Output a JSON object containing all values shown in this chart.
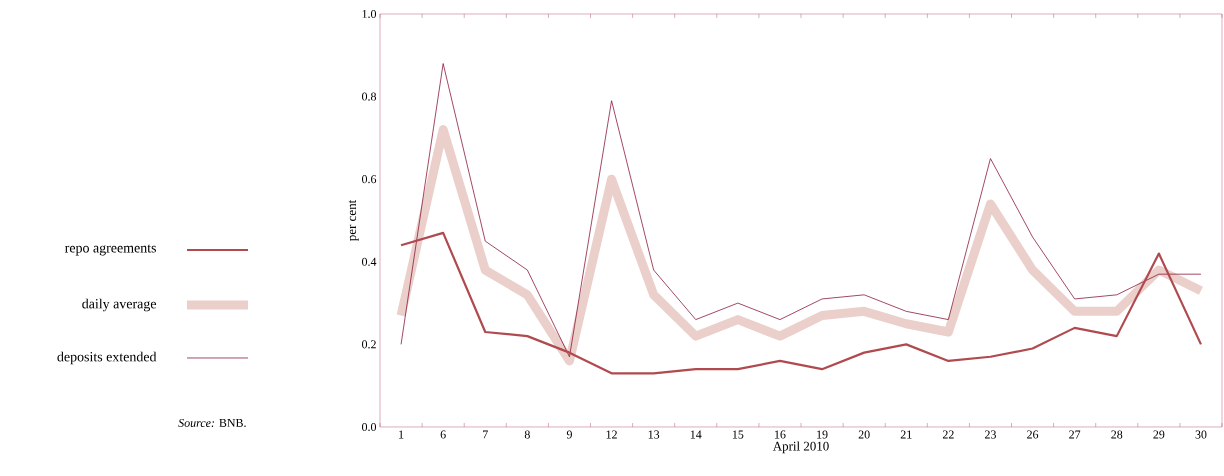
{
  "chart_data": {
    "type": "line",
    "xlabel": "April 2010",
    "ylabel": "per cent",
    "categories": [
      "1",
      "6",
      "7",
      "8",
      "9",
      "12",
      "13",
      "14",
      "15",
      "16",
      "19",
      "20",
      "21",
      "22",
      "23",
      "26",
      "27",
      "28",
      "29",
      "30"
    ],
    "series": [
      {
        "name": "repo agreements",
        "color": "#b04a4f",
        "values": [
          0.44,
          0.47,
          0.23,
          0.22,
          0.18,
          0.13,
          0.13,
          0.14,
          0.14,
          0.16,
          0.14,
          0.18,
          0.2,
          0.16,
          0.17,
          0.19,
          0.24,
          0.22,
          0.42,
          0.2
        ]
      },
      {
        "name": "daily average",
        "color": "#ebcfca",
        "values": [
          0.27,
          0.72,
          0.38,
          0.32,
          0.16,
          0.6,
          0.32,
          0.22,
          0.26,
          0.22,
          0.27,
          0.28,
          0.25,
          0.23,
          0.54,
          0.38,
          0.28,
          0.28,
          0.38,
          0.33
        ]
      },
      {
        "name": "deposits extended",
        "color": "#8b1a3a",
        "values": [
          0.2,
          0.88,
          0.45,
          0.38,
          0.17,
          0.79,
          0.38,
          0.26,
          0.3,
          0.26,
          0.31,
          0.32,
          0.28,
          0.26,
          0.65,
          0.46,
          0.31,
          0.32,
          0.37,
          0.37
        ]
      }
    ],
    "ylim": [
      0,
      1
    ],
    "yticks": [
      {
        "value": 0,
        "label": "0.0"
      },
      {
        "value": 0.2,
        "label": "0.2"
      },
      {
        "value": 0.4,
        "label": "0.4"
      },
      {
        "value": 0.6,
        "label": "0.6"
      },
      {
        "value": 0.8,
        "label": "0.8"
      },
      {
        "value": 1,
        "label": "1.0"
      }
    ],
    "legend": "left",
    "grid": false,
    "marker": "none",
    "line_style": "solid",
    "annotations": [
      "*Source:* BNB."
    ]
  }
}
